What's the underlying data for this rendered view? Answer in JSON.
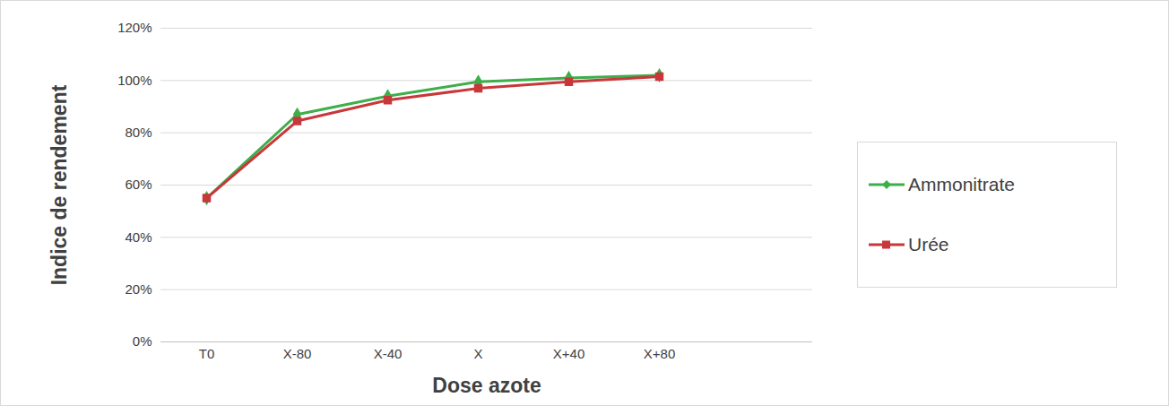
{
  "chart_data": {
    "type": "line",
    "x_label": "Dose azote",
    "y_label": "Indice de rendement",
    "categories": [
      "T0",
      "X-80",
      "X-40",
      "X",
      "X+40",
      "X+80"
    ],
    "series": [
      {
        "name": "Ammonitrate",
        "color": "#3cae4a",
        "marker": "diamond",
        "values": [
          55,
          87,
          94,
          99.5,
          101,
          102
        ]
      },
      {
        "name": "Urée",
        "color": "#c8373a",
        "marker": "square",
        "values": [
          55,
          84.5,
          92.5,
          97,
          99.5,
          101.5
        ]
      }
    ],
    "ylim": [
      0,
      120
    ],
    "yticks": [
      {
        "value": 0,
        "label": "0%"
      },
      {
        "value": 20,
        "label": "20%"
      },
      {
        "value": 40,
        "label": "40%"
      },
      {
        "value": 60,
        "label": "60%"
      },
      {
        "value": 80,
        "label": "80%"
      },
      {
        "value": 100,
        "label": "100%"
      },
      {
        "value": 120,
        "label": "120%"
      }
    ],
    "grid": true,
    "legend": "right"
  }
}
